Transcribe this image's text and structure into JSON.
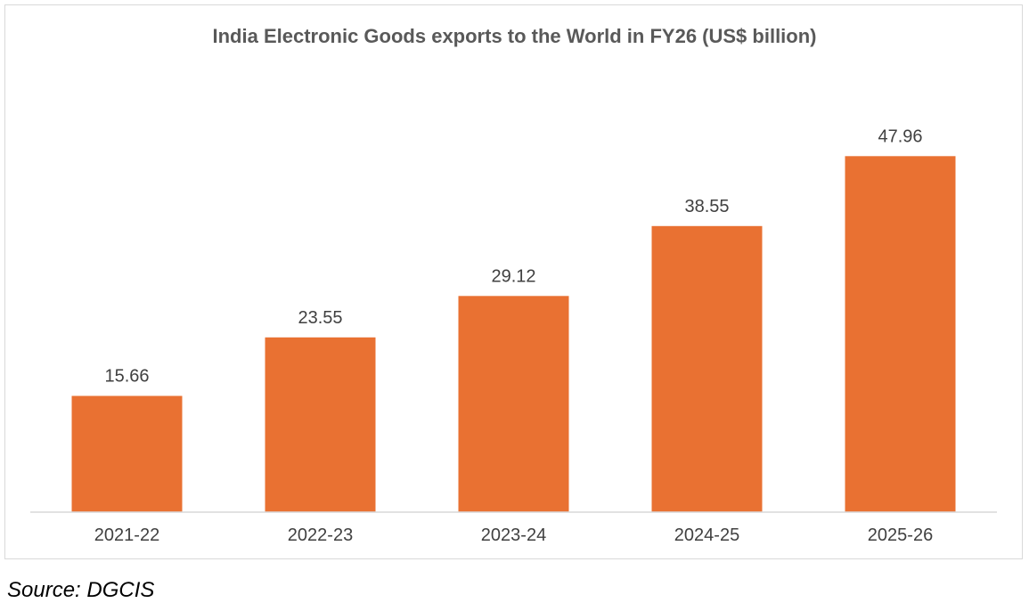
{
  "chart_data": {
    "type": "bar",
    "title": "India Electronic Goods exports to the World in FY26 (US$ billion)",
    "categories": [
      "2021-22",
      "2022-23",
      "2023-24",
      "2024-25",
      "2025-26"
    ],
    "values": [
      15.66,
      23.55,
      29.12,
      38.55,
      47.96
    ],
    "data_labels": [
      "15.66",
      "23.55",
      "29.12",
      "38.55",
      "47.96"
    ],
    "xlabel": "",
    "ylabel": "",
    "ylim": [
      0,
      54
    ],
    "grid": false,
    "legend": "none",
    "bar_color": "#E97132",
    "axis_color": "#d9d9d9",
    "text_color": "#404040"
  },
  "source": "Source: DGCIS"
}
